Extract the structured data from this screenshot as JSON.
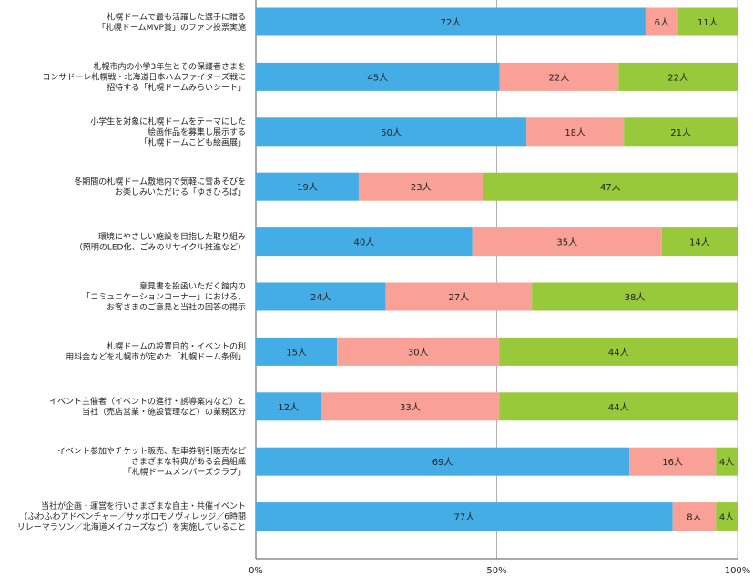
{
  "chart_data": {
    "type": "bar",
    "orientation": "horizontal",
    "stacked": "percent",
    "categories": [
      [
        "札幌ドームで最も活躍した選手に贈る",
        "「札幌ドームMVP賞」のファン投票実施"
      ],
      [
        "札幌市内の小学3年生とその保護者さまを",
        "コンサドーレ札幌戦・北海道日本ハムファイターズ戦に",
        "招待する「札幌ドームみらいシート」"
      ],
      [
        "小学生を対象に札幌ドームをテーマにした",
        "絵画作品を募集し展示する",
        "「札幌ドームこども絵画展」"
      ],
      [
        "冬期間の札幌ドーム敷地内で気軽に雪あそびを",
        "お楽しみいただける「ゆきひろば」"
      ],
      [
        "環境にやさしい施設を目指した取り組み",
        "（照明のLED化、ごみのリサイクル推進など）"
      ],
      [
        "意見書を投函いただく館内の",
        "「コミュニケーションコーナー」における、",
        "お客さまのご意見と当社の回答の掲示"
      ],
      [
        "札幌ドームの設置目的・イベントの利",
        "用料金などを札幌市が定めた「札幌ドーム条例」"
      ],
      [
        "イベント主催者（イベントの進行・誘導案内など）と",
        "当社（売店営業・施設管理など）の業務区分"
      ],
      [
        "イベント参加やチケット販売、駐車券割引販売など",
        "さまざまな特典がある会員組織",
        "「札幌ドームメンバーズクラブ」"
      ],
      [
        "当社が企画・運営を行いさまざまな自主・共催イベント",
        "（ふわふわアドベンチャー／サッポロモノヴィレッジ／6時間",
        "リレーマラソン／北海道メイカーズなど）を実施していること"
      ]
    ],
    "series": [
      {
        "color": "#45ade6",
        "values": [
          72,
          45,
          50,
          19,
          40,
          24,
          15,
          12,
          69,
          77
        ]
      },
      {
        "color": "#f9a196",
        "values": [
          6,
          22,
          18,
          23,
          35,
          27,
          30,
          33,
          16,
          8
        ]
      },
      {
        "color": "#97c93a",
        "values": [
          11,
          22,
          21,
          47,
          14,
          38,
          44,
          44,
          4,
          4
        ]
      }
    ],
    "value_suffix": "人",
    "x_ticks": [
      "0%",
      "50%",
      "100%"
    ],
    "xlim": [
      0,
      100
    ],
    "grid": true,
    "legend": "none"
  }
}
